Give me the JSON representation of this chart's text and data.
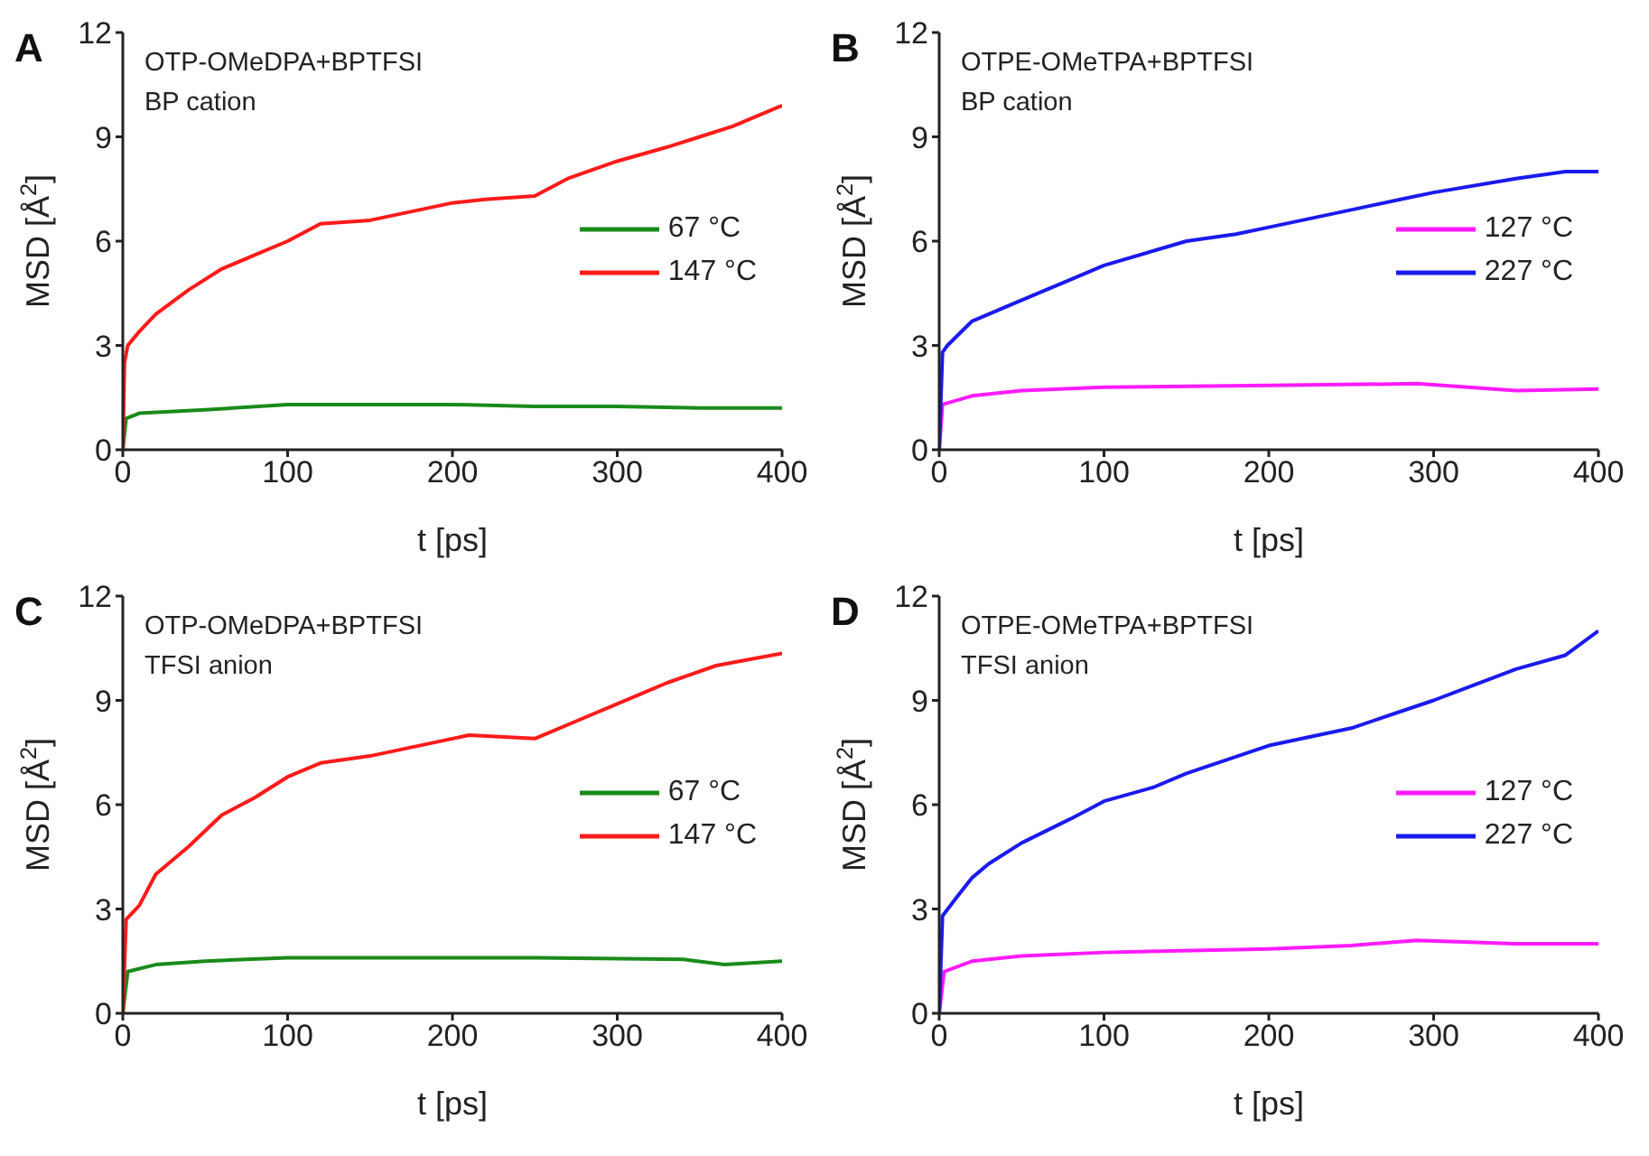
{
  "chart_data": [
    {
      "type": "line",
      "title": "A",
      "annotations": [
        "OTP-OMeDPA+BPTFSI",
        "BP cation"
      ],
      "xlabel": "t [ps]",
      "ylabel": "MSD [Å$^{2}$]",
      "xlim": [
        0,
        400
      ],
      "xticks": [
        0,
        100,
        200,
        300,
        400
      ],
      "ylim": [
        0,
        12
      ],
      "yticks": [
        0,
        3,
        6,
        9,
        12
      ],
      "grid": false,
      "legend": "right",
      "marker": "none",
      "line_style": "solid",
      "series": [
        {
          "name": "67 °C",
          "color": "#1a8a1a",
          "x": [
            0,
            2,
            10,
            50,
            100,
            150,
            200,
            250,
            300,
            350,
            400
          ],
          "values": [
            0,
            0.9,
            1.05,
            1.15,
            1.3,
            1.3,
            1.3,
            1.25,
            1.25,
            1.2,
            1.2
          ]
        },
        {
          "name": "147 °C",
          "color": "#ff1a1a",
          "x": [
            0,
            1,
            3,
            10,
            20,
            40,
            60,
            80,
            100,
            120,
            150,
            180,
            200,
            220,
            250,
            270,
            300,
            330,
            350,
            370,
            400
          ],
          "values": [
            0,
            2.5,
            3.0,
            3.4,
            3.9,
            4.6,
            5.2,
            5.6,
            6.0,
            6.5,
            6.6,
            6.9,
            7.1,
            7.2,
            7.3,
            7.8,
            8.3,
            8.7,
            9.0,
            9.3,
            9.9
          ]
        }
      ]
    },
    {
      "type": "line",
      "title": "B",
      "annotations": [
        "OTPE-OMeTPA+BPTFSI",
        "BP cation"
      ],
      "xlabel": "t [ps]",
      "ylabel": "MSD [Å$^{2}$]",
      "xlim": [
        0,
        400
      ],
      "xticks": [
        0,
        100,
        200,
        300,
        400
      ],
      "ylim": [
        0,
        12
      ],
      "yticks": [
        0,
        3,
        6,
        9,
        12
      ],
      "grid": false,
      "legend": "right",
      "marker": "none",
      "line_style": "solid",
      "series": [
        {
          "name": "127 °C",
          "color": "#ff1aff",
          "x": [
            0,
            2,
            20,
            50,
            100,
            200,
            290,
            350,
            400
          ],
          "values": [
            0,
            1.3,
            1.55,
            1.7,
            1.8,
            1.85,
            1.9,
            1.7,
            1.75
          ]
        },
        {
          "name": "227 °C",
          "color": "#1a1aee",
          "x": [
            0,
            2,
            5,
            20,
            50,
            80,
            100,
            150,
            180,
            200,
            250,
            280,
            300,
            350,
            380,
            400
          ],
          "values": [
            0,
            2.8,
            3.0,
            3.7,
            4.3,
            4.9,
            5.3,
            6.0,
            6.2,
            6.4,
            6.9,
            7.2,
            7.4,
            7.8,
            8.0,
            8.0
          ]
        }
      ]
    },
    {
      "type": "line",
      "title": "C",
      "annotations": [
        "OTP-OMeDPA+BPTFSI",
        "TFSI anion"
      ],
      "xlabel": "t [ps]",
      "ylabel": "MSD [Å$^{2}$]",
      "xlim": [
        0,
        400
      ],
      "xticks": [
        0,
        100,
        200,
        300,
        400
      ],
      "ylim": [
        0,
        12
      ],
      "yticks": [
        0,
        3,
        6,
        9,
        12
      ],
      "grid": false,
      "legend": "right",
      "marker": "none",
      "line_style": "solid",
      "series": [
        {
          "name": "67 °C",
          "color": "#1a8a1a",
          "x": [
            0,
            3,
            20,
            50,
            100,
            150,
            250,
            340,
            365,
            400
          ],
          "values": [
            0,
            1.2,
            1.4,
            1.5,
            1.6,
            1.6,
            1.6,
            1.55,
            1.4,
            1.5
          ]
        },
        {
          "name": "147 °C",
          "color": "#ff1a1a",
          "x": [
            0,
            2,
            10,
            20,
            40,
            60,
            80,
            100,
            120,
            150,
            200,
            210,
            250,
            280,
            300,
            330,
            360,
            400
          ],
          "values": [
            0,
            2.7,
            3.1,
            4.0,
            4.8,
            5.7,
            6.2,
            6.8,
            7.2,
            7.4,
            7.9,
            8.0,
            7.9,
            8.5,
            8.9,
            9.5,
            10.0,
            10.35
          ]
        }
      ]
    },
    {
      "type": "line",
      "title": "D",
      "annotations": [
        "OTPE-OMeTPA+BPTFSI",
        "TFSI anion"
      ],
      "xlabel": "t [ps]",
      "ylabel": "MSD [Å$^{2}$]",
      "xlim": [
        0,
        400
      ],
      "xticks": [
        0,
        100,
        200,
        300,
        400
      ],
      "ylim": [
        0,
        12
      ],
      "yticks": [
        0,
        3,
        6,
        9,
        12
      ],
      "grid": false,
      "legend": "right",
      "marker": "none",
      "line_style": "solid",
      "series": [
        {
          "name": "127 °C",
          "color": "#ff1aff",
          "x": [
            0,
            3,
            20,
            50,
            100,
            200,
            250,
            290,
            350,
            400
          ],
          "values": [
            0,
            1.2,
            1.5,
            1.65,
            1.75,
            1.85,
            1.95,
            2.1,
            2.0,
            2.0
          ]
        },
        {
          "name": "227 °C",
          "color": "#1a1aee",
          "x": [
            0,
            2,
            10,
            20,
            30,
            50,
            80,
            100,
            130,
            150,
            200,
            250,
            300,
            350,
            380,
            400
          ],
          "values": [
            0,
            2.8,
            3.3,
            3.9,
            4.3,
            4.9,
            5.6,
            6.1,
            6.5,
            6.9,
            7.7,
            8.2,
            9.0,
            9.9,
            10.3,
            11.0
          ]
        }
      ]
    }
  ]
}
